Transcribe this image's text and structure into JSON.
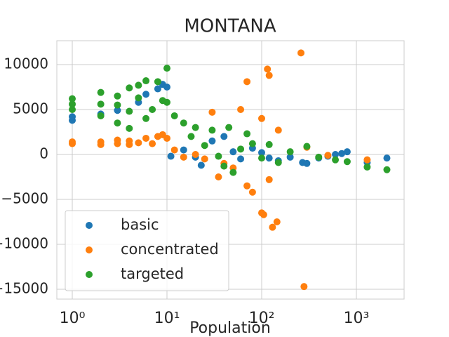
{
  "chart_data": {
    "type": "scatter",
    "title": "MONTANA",
    "xlabel": "Population",
    "xscale": "log",
    "grid": true,
    "legend": "lower left",
    "xlim": [
      0.687,
      3190
    ],
    "ylim": [
      -16094,
      12656
    ],
    "xticks": [
      {
        "value": 1,
        "label": "10⁰"
      },
      {
        "value": 10,
        "label": "10¹"
      },
      {
        "value": 100,
        "label": "10²"
      },
      {
        "value": 1000,
        "label": "10³"
      }
    ],
    "yticks": [
      {
        "value": -15000,
        "label": "−15000"
      },
      {
        "value": -10000,
        "label": "−10000"
      },
      {
        "value": -5000,
        "label": "−5000"
      },
      0,
      5000,
      10000
    ],
    "series": [
      {
        "name": "basic",
        "color": "#1f77b4",
        "x": [
          1,
          1,
          2,
          3,
          5,
          6,
          8,
          9,
          10,
          11,
          15,
          20,
          23,
          30,
          40,
          50,
          60,
          80,
          100,
          120,
          150,
          200,
          270,
          300,
          400,
          500,
          600,
          700,
          800,
          1300,
          2100
        ],
        "values": [
          3800,
          4200,
          4500,
          4900,
          5800,
          6700,
          7300,
          7800,
          7500,
          -200,
          500,
          -300,
          -1200,
          1500,
          2000,
          300,
          -500,
          700,
          200,
          -400,
          -700,
          -300,
          -900,
          -1000,
          -400,
          -200,
          0,
          100,
          300,
          -900,
          -400
        ]
      },
      {
        "name": "concentrated",
        "color": "#ff7f0e",
        "x": [
          1,
          1,
          2,
          2,
          3,
          3,
          4,
          4,
          5,
          6,
          7,
          8,
          9,
          10,
          12,
          15,
          20,
          25,
          30,
          35,
          40,
          50,
          60,
          70,
          70,
          80,
          100,
          105,
          100,
          115,
          120,
          120,
          130,
          145,
          150,
          260,
          280,
          300,
          500,
          1300
        ],
        "values": [
          1200,
          1400,
          1100,
          1400,
          1200,
          1600,
          1100,
          1500,
          1300,
          1800,
          1200,
          2000,
          2200,
          1800,
          500,
          -300,
          0,
          -500,
          4700,
          -2500,
          -1000,
          -1500,
          5000,
          8100,
          -3500,
          -4200,
          -6500,
          -6700,
          4000,
          9500,
          8800,
          -2800,
          -8100,
          -7500,
          2700,
          11300,
          -14700,
          800,
          -100,
          -600
        ]
      },
      {
        "name": "targeted",
        "color": "#2ca02c",
        "x": [
          1,
          1,
          1,
          2,
          2,
          2,
          3,
          3,
          3,
          4,
          4,
          4,
          5,
          5,
          6,
          6,
          7,
          8,
          9,
          10,
          10,
          12,
          15,
          18,
          20,
          25,
          30,
          35,
          40,
          45,
          50,
          60,
          70,
          80,
          100,
          120,
          150,
          200,
          300,
          400,
          600,
          800,
          1300,
          2100
        ],
        "values": [
          6200,
          5000,
          5600,
          6900,
          5600,
          4300,
          6500,
          5500,
          3500,
          7400,
          4800,
          2900,
          7700,
          6300,
          8200,
          4000,
          5000,
          8100,
          6000,
          9600,
          5800,
          4300,
          3500,
          2000,
          3000,
          1000,
          2700,
          -200,
          -1300,
          3000,
          -2000,
          600,
          2300,
          1200,
          -400,
          1100,
          -900,
          300,
          900,
          -300,
          -600,
          -800,
          -1400,
          -1700
        ]
      }
    ]
  }
}
